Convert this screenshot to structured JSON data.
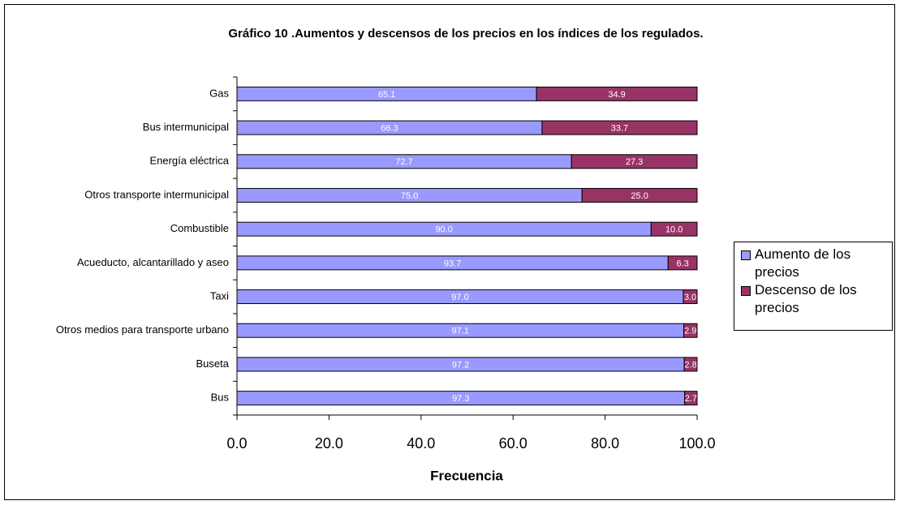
{
  "chart_data": {
    "type": "stacked-bar-horizontal",
    "title": "Gráfico 10 .Aumentos y descensos de los precios en los índices de los regulados.",
    "x_label": "Frecuencia",
    "categories": [
      "Gas",
      "Bus intermunicipal",
      "Energía eléctrica",
      "Otros transporte intermunicipal",
      "Combustible",
      "Acueducto, alcantarillado y aseo",
      "Taxi",
      "Otros medios para transporte urbano",
      "Buseta",
      "Bus"
    ],
    "series": [
      {
        "name": "Aumento de los precios",
        "color": "#9999ff",
        "values": [
          65.1,
          66.3,
          72.7,
          75,
          90,
          93.7,
          97,
          97.1,
          97.2,
          97.3
        ],
        "value_labels": [
          "65.1",
          "66.3",
          "72.7",
          "75.0",
          "90.0",
          "93.7",
          "97.0",
          "97.1",
          "97.2",
          "97.3"
        ]
      },
      {
        "name": "Descenso de los precios",
        "color": "#993366",
        "values": [
          34.9,
          33.7,
          27.3,
          25,
          10,
          6.3,
          3,
          2.9,
          2.8,
          2.7
        ],
        "value_labels": [
          "34.9",
          "33.7",
          "27.3",
          "25.0",
          "10.0",
          "6.3",
          "3.0",
          "2.9",
          "2.8",
          "2.7"
        ]
      }
    ],
    "xlim": [
      0,
      100
    ],
    "xticks": [
      {
        "value": 0,
        "label": "0.0"
      },
      {
        "value": 20,
        "label": "20.0"
      },
      {
        "value": 40,
        "label": "40.0"
      },
      {
        "value": 60,
        "label": "60.0"
      },
      {
        "value": 80,
        "label": "80.0"
      },
      {
        "value": 100,
        "label": "100.0"
      }
    ],
    "legend": "right"
  }
}
